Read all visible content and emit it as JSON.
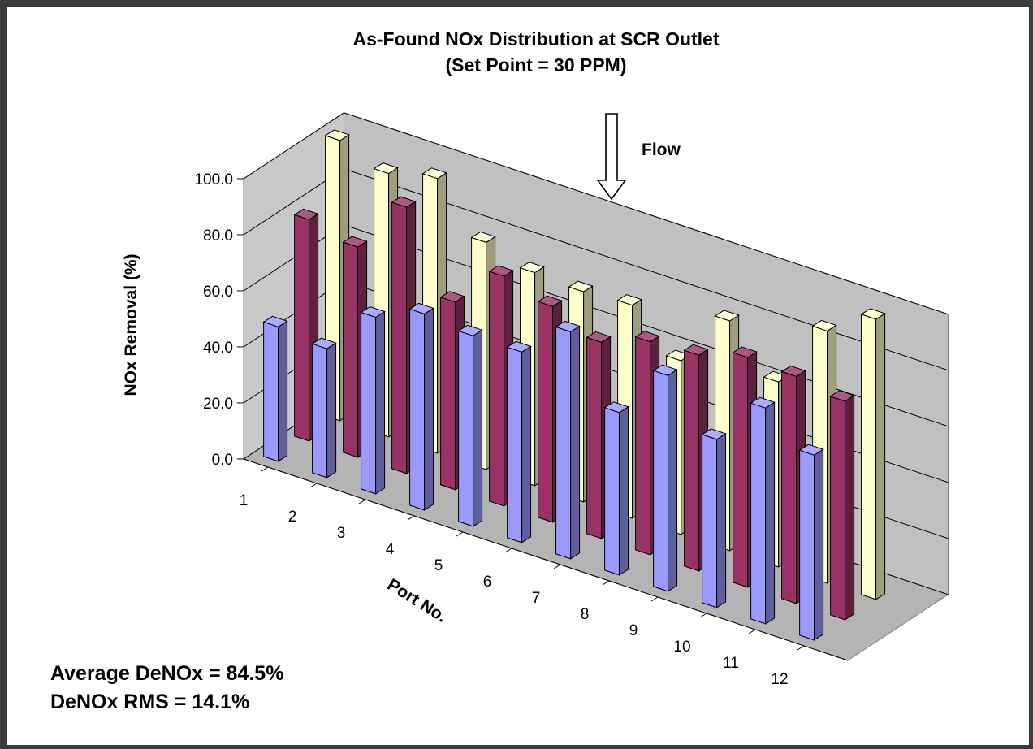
{
  "chart_data": {
    "type": "bar",
    "subtype": "3d-column",
    "title": "As-Found NOx Distribution at SCR Outlet",
    "subtitle": "(Set Point = 30 PPM)",
    "ylabel": "NOx Removal (%)",
    "xlabel": "Port No.",
    "ylim": [
      0,
      100
    ],
    "yticks": [
      "0.0",
      "20.0",
      "40.0",
      "60.0",
      "80.0",
      "100.0"
    ],
    "categories": [
      "1",
      "2",
      "3",
      "4",
      "5",
      "6",
      "7",
      "8",
      "9",
      "10",
      "11",
      "12"
    ],
    "series": [
      {
        "color": "#9999ff",
        "values": [
          48,
          46,
          63,
          70,
          68,
          68,
          81,
          58,
          77,
          60,
          77,
          66
        ]
      },
      {
        "color": "#993366",
        "values": [
          79,
          75,
          95,
          67,
          82,
          77,
          70,
          76,
          77,
          82,
          81,
          78
        ]
      },
      {
        "color": "#ffffcc",
        "values": [
          100,
          94,
          98,
          81,
          76,
          75,
          76,
          62,
          82,
          66,
          90,
          100
        ]
      }
    ],
    "grid": true,
    "legend": "none"
  },
  "annotations": {
    "flow_label": "Flow",
    "average_denox": "Average DeNOx = 84.5%",
    "denox_rms": "DeNOx RMS = 14.1%"
  }
}
